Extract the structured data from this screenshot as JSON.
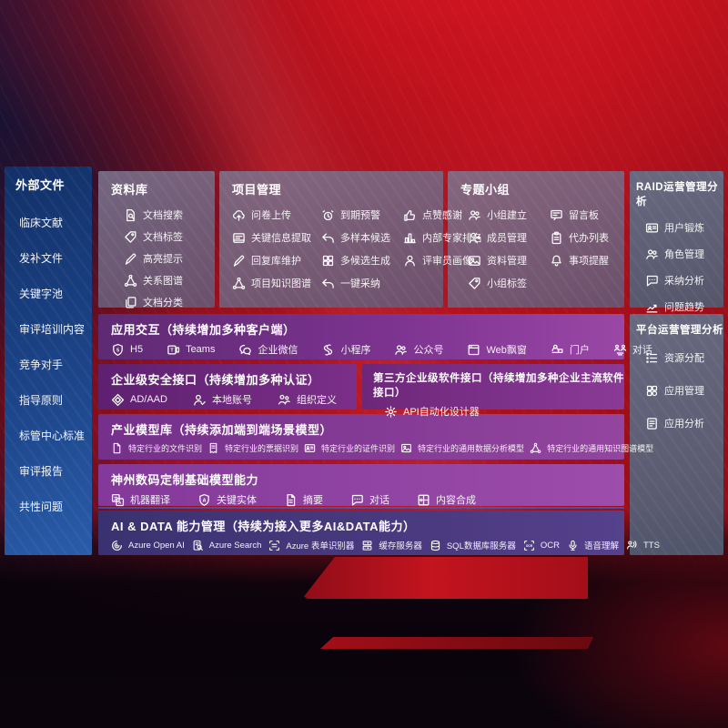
{
  "colors": {
    "background_red": "#b41320",
    "sidebar_blue": "#1c4488",
    "panel_mauve": "#6f6380",
    "panel_gray_blue": "#5c6a82",
    "row_purple": "#8a3a9a",
    "row_indigo": "#433a7e",
    "accent_blue_line": "#3462d2"
  },
  "sidebar": {
    "title": "外部文件",
    "items": [
      "临床文献",
      "发补文件",
      "关键字池",
      "审评培训内容",
      "竞争对手",
      "指导原则",
      "标管中心标准",
      "审评报告",
      "共性问题"
    ]
  },
  "library_panel": {
    "title": "资料库",
    "items": [
      {
        "label": "文档搜索",
        "icon": "doc-search"
      },
      {
        "label": "文档标签",
        "icon": "tag"
      },
      {
        "label": "高亮提示",
        "icon": "pen"
      },
      {
        "label": "关系图谱",
        "icon": "network"
      },
      {
        "label": "文档分类",
        "icon": "docs"
      }
    ]
  },
  "project_panel": {
    "title": "项目管理",
    "items": [
      {
        "label": "问卷上传",
        "icon": "cloud-upload"
      },
      {
        "label": "到期预警",
        "icon": "alarm"
      },
      {
        "label": "点赞感谢",
        "icon": "thumbs-up"
      },
      {
        "label": "关键信息提取",
        "icon": "key-info"
      },
      {
        "label": "多样本候选",
        "icon": "reply"
      },
      {
        "label": "内部专家排名",
        "icon": "ranking"
      },
      {
        "label": "回复库维护",
        "icon": "pen"
      },
      {
        "label": "多候选生成",
        "icon": "grid"
      },
      {
        "label": "评审员画像",
        "icon": "person"
      },
      {
        "label": "项目知识图谱",
        "icon": "network"
      },
      {
        "label": "一键采纳",
        "icon": "reply"
      }
    ]
  },
  "group_panel": {
    "title": "专题小组",
    "items": [
      {
        "label": "小组建立",
        "icon": "people"
      },
      {
        "label": "留言板",
        "icon": "bbs"
      },
      {
        "label": "成员管理",
        "icon": "person-add"
      },
      {
        "label": "代办列表",
        "icon": "clipboard"
      },
      {
        "label": "资料管理",
        "icon": "photo"
      },
      {
        "label": "事项提醒",
        "icon": "bell"
      },
      {
        "label": "小组标签",
        "icon": "tag"
      }
    ]
  },
  "raid_panel": {
    "title": "RAID运营管理分析",
    "items": [
      {
        "label": "用户锻炼",
        "icon": "id-card"
      },
      {
        "label": "角色管理",
        "icon": "people"
      },
      {
        "label": "采纳分析",
        "icon": "chat-dots"
      },
      {
        "label": "问题趋势",
        "icon": "trend"
      }
    ]
  },
  "platform_panel": {
    "title": "平台运营管理分析",
    "items": [
      {
        "label": "资源分配",
        "icon": "list"
      },
      {
        "label": "应用管理",
        "icon": "app-grid"
      },
      {
        "label": "应用分析",
        "icon": "report"
      }
    ]
  },
  "interaction_row": {
    "title": "应用交互（持续增加多种客户端）",
    "items": [
      {
        "label": "H5",
        "icon": "h5"
      },
      {
        "label": "Teams",
        "icon": "teams"
      },
      {
        "label": "企业微信",
        "icon": "wechat"
      },
      {
        "label": "小程序",
        "icon": "mini-program"
      },
      {
        "label": "公众号",
        "icon": "people"
      },
      {
        "label": "Web飘窗",
        "icon": "window"
      },
      {
        "label": "门户",
        "icon": "portal"
      },
      {
        "label": "对话",
        "icon": "chat-pair"
      }
    ]
  },
  "security_row": {
    "title": "企业级安全接口（持续增加多种认证）",
    "items": [
      {
        "label": "AD/AAD",
        "icon": "diamond"
      },
      {
        "label": "本地账号",
        "icon": "user-check"
      },
      {
        "label": "组织定义",
        "icon": "org"
      }
    ]
  },
  "thirdparty_row": {
    "title": "第三方企业级软件接口（持续增加多种企业主流软件接口）",
    "items": [
      {
        "label": "API自动化设计器",
        "icon": "api-gear"
      }
    ]
  },
  "model_row": {
    "title": "产业模型库（持续添加端到端场景模型）",
    "items": [
      {
        "label": "特定行业的文件识别",
        "icon": "doc"
      },
      {
        "label": "特定行业的票据识别",
        "icon": "receipt"
      },
      {
        "label": "特定行业的证件识别",
        "icon": "id-card"
      },
      {
        "label": "特定行业的通用数据分析模型",
        "icon": "photo"
      },
      {
        "label": "特定行业的通用知识图谱模型",
        "icon": "network"
      }
    ]
  },
  "foundation_row": {
    "title": "神州数码定制基础模型能力",
    "items": [
      {
        "label": "机器翻译",
        "icon": "translate"
      },
      {
        "label": "关键实体",
        "icon": "shield-a"
      },
      {
        "label": "摘要",
        "icon": "summary-doc"
      },
      {
        "label": "对话",
        "icon": "chat-dots"
      },
      {
        "label": "内容合成",
        "icon": "compose"
      }
    ]
  },
  "aidata_row": {
    "title": "AI & DATA 能力管理（持续为接入更多AI&DATA能力）",
    "items": [
      {
        "label": "Azure Open AI",
        "icon": "openai"
      },
      {
        "label": "Azure Search",
        "icon": "search-doc"
      },
      {
        "label": "Azure 表单识别器",
        "icon": "form-scan"
      },
      {
        "label": "缓存服务器",
        "icon": "server"
      },
      {
        "label": "SQL数据库服务器",
        "icon": "database"
      },
      {
        "label": "OCR",
        "icon": "ocr"
      },
      {
        "label": "语音理解",
        "icon": "voice"
      },
      {
        "label": "TTS",
        "icon": "tts"
      }
    ]
  }
}
